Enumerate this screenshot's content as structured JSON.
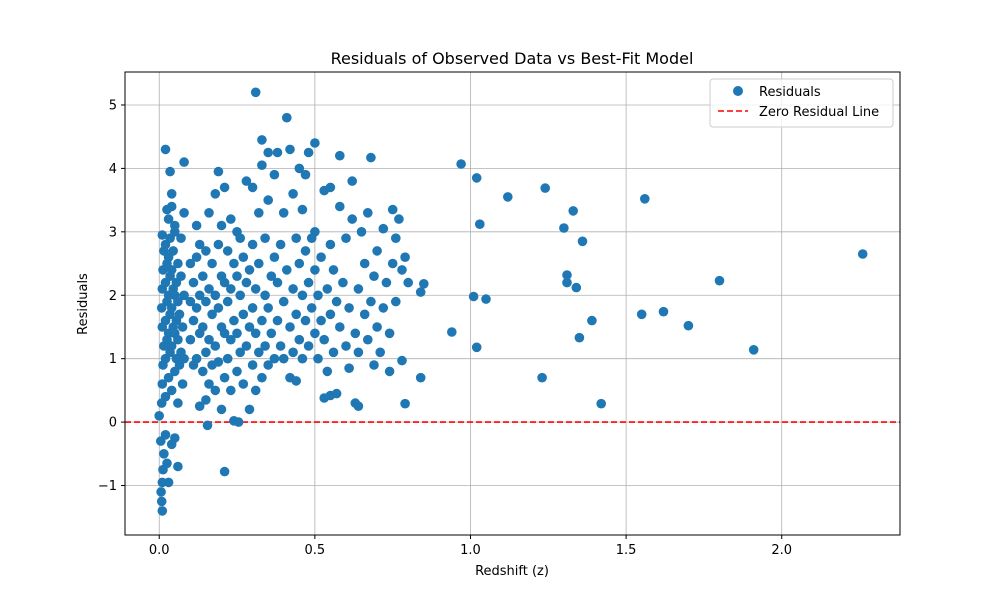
{
  "chart_data": {
    "type": "scatter",
    "title": "Residuals of Observed Data vs Best-Fit Model",
    "xlabel": "Redshift (z)",
    "ylabel": "Residuals",
    "xlim": [
      -0.11,
      2.38
    ],
    "ylim": [
      -1.78,
      5.52
    ],
    "xticks": [
      0.0,
      0.5,
      1.0,
      1.5,
      2.0
    ],
    "xtick_labels": [
      "0.0",
      "0.5",
      "1.0",
      "1.5",
      "2.0"
    ],
    "yticks": [
      -1,
      0,
      1,
      2,
      3,
      4,
      5
    ],
    "ytick_labels": [
      "−1",
      "0",
      "1",
      "2",
      "3",
      "4",
      "5"
    ],
    "grid": true,
    "legend_position": "top-right",
    "legend": [
      "Residuals",
      "Zero Residual Line"
    ],
    "colors": {
      "residuals": "#1f77b4",
      "zero_line": "#ff0000"
    },
    "zero_line": {
      "y": 0,
      "style": "dashed"
    },
    "series": [
      {
        "name": "Residuals",
        "points": [
          [
            0.0,
            0.1
          ],
          [
            0.005,
            -0.3
          ],
          [
            0.01,
            -1.4
          ],
          [
            0.008,
            -1.25
          ],
          [
            0.006,
            -1.1
          ],
          [
            0.012,
            -0.75
          ],
          [
            0.015,
            -0.5
          ],
          [
            0.01,
            -0.95
          ],
          [
            0.02,
            -0.2
          ],
          [
            0.025,
            -0.65
          ],
          [
            0.03,
            -0.95
          ],
          [
            0.04,
            -0.35
          ],
          [
            0.05,
            -0.25
          ],
          [
            0.06,
            -0.7
          ],
          [
            0.008,
            0.3
          ],
          [
            0.01,
            0.6
          ],
          [
            0.012,
            0.9
          ],
          [
            0.015,
            1.2
          ],
          [
            0.01,
            1.5
          ],
          [
            0.008,
            1.8
          ],
          [
            0.01,
            2.1
          ],
          [
            0.012,
            2.4
          ],
          [
            0.015,
            2.7
          ],
          [
            0.01,
            2.95
          ],
          [
            0.02,
            0.4
          ],
          [
            0.02,
            1.0
          ],
          [
            0.02,
            1.6
          ],
          [
            0.02,
            2.2
          ],
          [
            0.02,
            2.8
          ],
          [
            0.025,
            1.3
          ],
          [
            0.025,
            1.9
          ],
          [
            0.025,
            2.5
          ],
          [
            0.03,
            0.7
          ],
          [
            0.03,
            1.4
          ],
          [
            0.03,
            2.0
          ],
          [
            0.03,
            2.6
          ],
          [
            0.03,
            3.2
          ],
          [
            0.035,
            1.1
          ],
          [
            0.035,
            1.7
          ],
          [
            0.035,
            2.3
          ],
          [
            0.035,
            2.9
          ],
          [
            0.04,
            0.5
          ],
          [
            0.04,
            1.2
          ],
          [
            0.04,
            1.8
          ],
          [
            0.04,
            2.4
          ],
          [
            0.04,
            3.4
          ],
          [
            0.045,
            1.5
          ],
          [
            0.045,
            2.1
          ],
          [
            0.045,
            2.7
          ],
          [
            0.05,
            0.8
          ],
          [
            0.05,
            1.4
          ],
          [
            0.05,
            2.0
          ],
          [
            0.05,
            3.0
          ],
          [
            0.055,
            1.0
          ],
          [
            0.055,
            1.6
          ],
          [
            0.055,
            2.2
          ],
          [
            0.06,
            0.3
          ],
          [
            0.06,
            1.3
          ],
          [
            0.06,
            1.9
          ],
          [
            0.06,
            2.5
          ],
          [
            0.065,
            0.9
          ],
          [
            0.065,
            1.7
          ],
          [
            0.07,
            1.1
          ],
          [
            0.07,
            2.3
          ],
          [
            0.07,
            2.9
          ],
          [
            0.075,
            0.6
          ],
          [
            0.075,
            1.5
          ],
          [
            0.08,
            1.0
          ],
          [
            0.08,
            2.0
          ],
          [
            0.08,
            3.3
          ],
          [
            0.02,
            4.3
          ],
          [
            0.035,
            3.95
          ],
          [
            0.08,
            4.1
          ],
          [
            0.04,
            3.6
          ],
          [
            0.025,
            3.35
          ],
          [
            0.05,
            3.1
          ],
          [
            0.1,
            1.3
          ],
          [
            0.1,
            1.9
          ],
          [
            0.1,
            2.5
          ],
          [
            0.11,
            0.9
          ],
          [
            0.11,
            1.6
          ],
          [
            0.11,
            2.2
          ],
          [
            0.12,
            1.0
          ],
          [
            0.12,
            1.8
          ],
          [
            0.12,
            2.6
          ],
          [
            0.12,
            3.1
          ],
          [
            0.13,
            0.25
          ],
          [
            0.13,
            1.4
          ],
          [
            0.13,
            2.0
          ],
          [
            0.13,
            2.8
          ],
          [
            0.14,
            0.8
          ],
          [
            0.14,
            1.5
          ],
          [
            0.14,
            2.3
          ],
          [
            0.15,
            0.35
          ],
          [
            0.15,
            1.1
          ],
          [
            0.15,
            1.9
          ],
          [
            0.15,
            2.7
          ],
          [
            0.155,
            -0.05
          ],
          [
            0.16,
            0.6
          ],
          [
            0.16,
            1.3
          ],
          [
            0.16,
            2.1
          ],
          [
            0.16,
            3.3
          ],
          [
            0.17,
            0.9
          ],
          [
            0.17,
            1.7
          ],
          [
            0.17,
            2.5
          ],
          [
            0.18,
            0.5
          ],
          [
            0.18,
            1.2
          ],
          [
            0.18,
            2.0
          ],
          [
            0.18,
            3.6
          ],
          [
            0.19,
            0.95
          ],
          [
            0.19,
            1.8
          ],
          [
            0.19,
            2.8
          ],
          [
            0.19,
            3.95
          ],
          [
            0.2,
            0.2
          ],
          [
            0.2,
            1.5
          ],
          [
            0.2,
            2.3
          ],
          [
            0.2,
            3.1
          ],
          [
            0.21,
            -0.78
          ],
          [
            0.21,
            0.7
          ],
          [
            0.21,
            1.4
          ],
          [
            0.21,
            2.2
          ],
          [
            0.21,
            3.7
          ],
          [
            0.22,
            1.0
          ],
          [
            0.22,
            1.9
          ],
          [
            0.22,
            2.7
          ],
          [
            0.23,
            0.5
          ],
          [
            0.23,
            1.3
          ],
          [
            0.23,
            2.1
          ],
          [
            0.23,
            3.2
          ],
          [
            0.24,
            0.02
          ],
          [
            0.24,
            1.6
          ],
          [
            0.24,
            2.5
          ],
          [
            0.25,
            0.8
          ],
          [
            0.25,
            1.4
          ],
          [
            0.25,
            2.3
          ],
          [
            0.25,
            3.0
          ],
          [
            0.255,
            -0.0
          ],
          [
            0.26,
            1.1
          ],
          [
            0.26,
            2.0
          ],
          [
            0.26,
            2.9
          ],
          [
            0.27,
            0.6
          ],
          [
            0.27,
            1.7
          ],
          [
            0.27,
            2.6
          ],
          [
            0.28,
            1.2
          ],
          [
            0.28,
            2.2
          ],
          [
            0.28,
            3.8
          ],
          [
            0.29,
            0.2
          ],
          [
            0.29,
            1.5
          ],
          [
            0.29,
            2.4
          ],
          [
            0.3,
            0.9
          ],
          [
            0.3,
            1.8
          ],
          [
            0.3,
            2.8
          ],
          [
            0.3,
            3.7
          ],
          [
            0.31,
            0.5
          ],
          [
            0.31,
            5.2
          ],
          [
            0.31,
            1.4
          ],
          [
            0.31,
            2.1
          ],
          [
            0.32,
            1.1
          ],
          [
            0.32,
            2.5
          ],
          [
            0.32,
            3.3
          ],
          [
            0.33,
            0.7
          ],
          [
            0.33,
            1.6
          ],
          [
            0.33,
            4.45
          ],
          [
            0.33,
            4.05
          ],
          [
            0.34,
            1.2
          ],
          [
            0.34,
            2.0
          ],
          [
            0.34,
            2.9
          ],
          [
            0.35,
            0.9
          ],
          [
            0.35,
            1.8
          ],
          [
            0.35,
            3.5
          ],
          [
            0.35,
            4.25
          ],
          [
            0.36,
            1.4
          ],
          [
            0.36,
            2.3
          ],
          [
            0.37,
            1.0
          ],
          [
            0.37,
            2.6
          ],
          [
            0.37,
            3.9
          ],
          [
            0.38,
            1.6
          ],
          [
            0.38,
            2.2
          ],
          [
            0.38,
            4.25
          ],
          [
            0.39,
            1.2
          ],
          [
            0.39,
            2.8
          ],
          [
            0.4,
            1.0
          ],
          [
            0.4,
            1.9
          ],
          [
            0.4,
            3.3
          ],
          [
            0.41,
            4.8
          ],
          [
            0.41,
            2.4
          ],
          [
            0.42,
            0.7
          ],
          [
            0.42,
            1.5
          ],
          [
            0.42,
            4.3
          ],
          [
            0.43,
            1.1
          ],
          [
            0.43,
            2.1
          ],
          [
            0.43,
            3.6
          ],
          [
            0.44,
            0.65
          ],
          [
            0.44,
            1.7
          ],
          [
            0.44,
            2.9
          ],
          [
            0.45,
            1.3
          ],
          [
            0.45,
            2.5
          ],
          [
            0.45,
            4.0
          ],
          [
            0.46,
            1.0
          ],
          [
            0.46,
            2.0
          ],
          [
            0.46,
            3.35
          ],
          [
            0.47,
            1.6
          ],
          [
            0.47,
            2.7
          ],
          [
            0.47,
            3.9
          ],
          [
            0.48,
            1.2
          ],
          [
            0.48,
            2.2
          ],
          [
            0.48,
            4.25
          ],
          [
            0.49,
            1.8
          ],
          [
            0.49,
            2.9
          ],
          [
            0.5,
            4.4
          ],
          [
            0.5,
            1.4
          ],
          [
            0.5,
            2.4
          ],
          [
            0.5,
            3.0
          ],
          [
            0.51,
            1.0
          ],
          [
            0.51,
            2.0
          ],
          [
            0.52,
            1.6
          ],
          [
            0.52,
            2.6
          ],
          [
            0.53,
            0.38
          ],
          [
            0.53,
            1.3
          ],
          [
            0.53,
            3.65
          ],
          [
            0.54,
            0.8
          ],
          [
            0.54,
            2.1
          ],
          [
            0.55,
            0.42
          ],
          [
            0.55,
            1.7
          ],
          [
            0.55,
            3.7
          ],
          [
            0.55,
            2.8
          ],
          [
            0.56,
            1.1
          ],
          [
            0.56,
            2.4
          ],
          [
            0.57,
            0.45
          ],
          [
            0.57,
            1.9
          ],
          [
            0.58,
            1.5
          ],
          [
            0.58,
            3.4
          ],
          [
            0.58,
            4.2
          ],
          [
            0.59,
            2.2
          ],
          [
            0.6,
            1.2
          ],
          [
            0.6,
            2.9
          ],
          [
            0.61,
            0.85
          ],
          [
            0.61,
            1.8
          ],
          [
            0.62,
            3.2
          ],
          [
            0.62,
            3.8
          ],
          [
            0.63,
            0.3
          ],
          [
            0.63,
            1.4
          ],
          [
            0.64,
            0.25
          ],
          [
            0.64,
            2.1
          ],
          [
            0.64,
            1.1
          ],
          [
            0.65,
            3.0
          ],
          [
            0.66,
            1.7
          ],
          [
            0.66,
            2.5
          ],
          [
            0.67,
            1.3
          ],
          [
            0.67,
            3.3
          ],
          [
            0.68,
            1.9
          ],
          [
            0.68,
            4.17
          ],
          [
            0.69,
            0.9
          ],
          [
            0.69,
            2.3
          ],
          [
            0.7,
            1.5
          ],
          [
            0.7,
            2.7
          ],
          [
            0.71,
            1.1
          ],
          [
            0.72,
            3.05
          ],
          [
            0.72,
            1.8
          ],
          [
            0.73,
            2.2
          ],
          [
            0.74,
            0.8
          ],
          [
            0.74,
            1.4
          ],
          [
            0.75,
            2.5
          ],
          [
            0.75,
            3.35
          ],
          [
            0.76,
            1.9
          ],
          [
            0.76,
            2.9
          ],
          [
            0.77,
            3.2
          ],
          [
            0.78,
            0.97
          ],
          [
            0.78,
            2.4
          ],
          [
            0.79,
            2.6
          ],
          [
            0.79,
            0.29
          ],
          [
            0.8,
            2.2
          ],
          [
            0.84,
            0.7
          ],
          [
            0.84,
            2.05
          ],
          [
            0.85,
            2.18
          ],
          [
            0.94,
            1.42
          ],
          [
            0.97,
            4.07
          ],
          [
            1.01,
            1.98
          ],
          [
            1.02,
            3.85
          ],
          [
            1.02,
            1.18
          ],
          [
            1.03,
            3.12
          ],
          [
            1.05,
            1.94
          ],
          [
            1.12,
            3.55
          ],
          [
            1.23,
            0.7
          ],
          [
            1.24,
            3.69
          ],
          [
            1.3,
            3.06
          ],
          [
            1.31,
            2.2
          ],
          [
            1.31,
            2.32
          ],
          [
            1.33,
            3.33
          ],
          [
            1.34,
            2.12
          ],
          [
            1.35,
            1.33
          ],
          [
            1.36,
            2.85
          ],
          [
            1.39,
            1.6
          ],
          [
            1.42,
            0.29
          ],
          [
            1.55,
            1.7
          ],
          [
            1.56,
            3.52
          ],
          [
            1.62,
            1.74
          ],
          [
            1.7,
            1.52
          ],
          [
            1.8,
            2.23
          ],
          [
            1.91,
            1.14
          ],
          [
            2.26,
            2.65
          ]
        ]
      },
      {
        "name": "Zero Residual Line",
        "y": 0
      }
    ]
  }
}
